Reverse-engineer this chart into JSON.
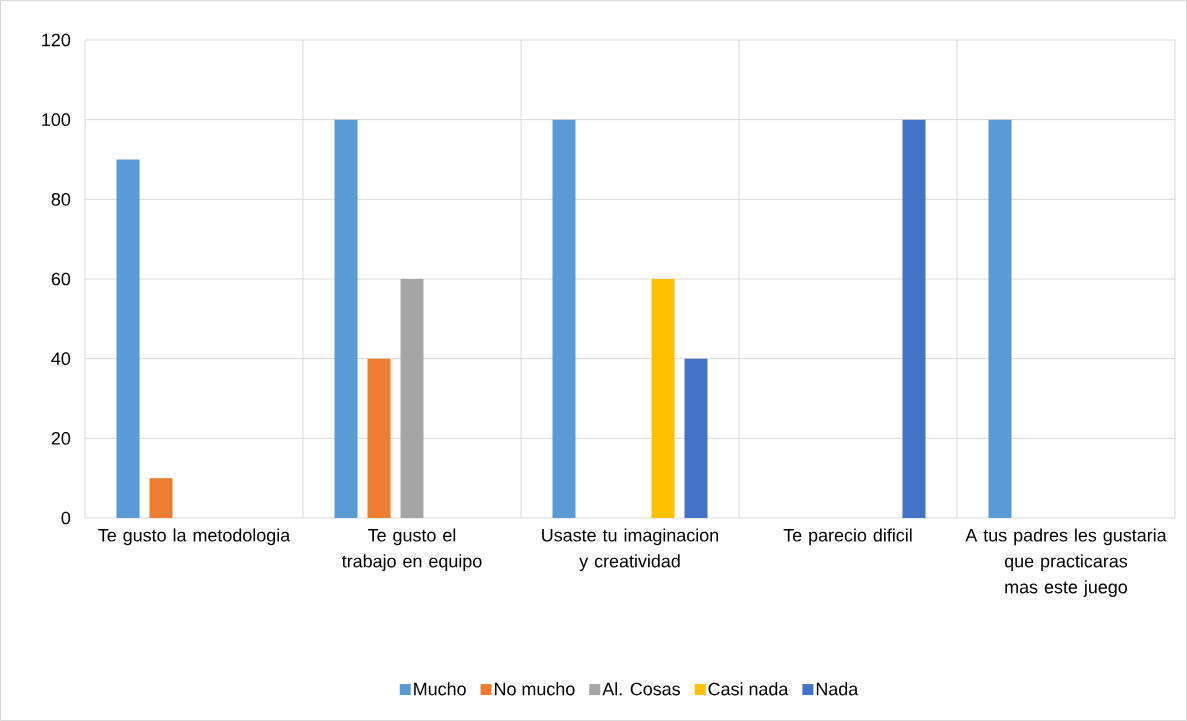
{
  "chart_data": {
    "type": "bar",
    "categories": [
      "Te gusto la metodologia",
      "Te gusto el trabajo en equipo",
      "Usaste tu imaginacion y creatividad",
      "Te parecio dificil",
      "A tus padres les gustaria que practicaras mas este juego"
    ],
    "series": [
      {
        "name": "Mucho",
        "color": "#5b9bd5",
        "values": [
          90,
          100,
          100,
          null,
          100
        ]
      },
      {
        "name": "No mucho",
        "color": "#ed7d31",
        "values": [
          10,
          40,
          null,
          null,
          null
        ]
      },
      {
        "name": "Al. Cosas",
        "color": "#a5a5a5",
        "values": [
          null,
          60,
          null,
          null,
          null
        ]
      },
      {
        "name": "Casi nada",
        "color": "#ffc000",
        "values": [
          null,
          null,
          60,
          null,
          null
        ]
      },
      {
        "name": "Nada",
        "color": "#4472c4",
        "values": [
          null,
          null,
          40,
          100,
          null
        ]
      }
    ],
    "ylim": [
      0,
      120
    ],
    "yticks": [
      0,
      20,
      40,
      60,
      80,
      100,
      120
    ],
    "grid": true,
    "legend": "bottom"
  }
}
